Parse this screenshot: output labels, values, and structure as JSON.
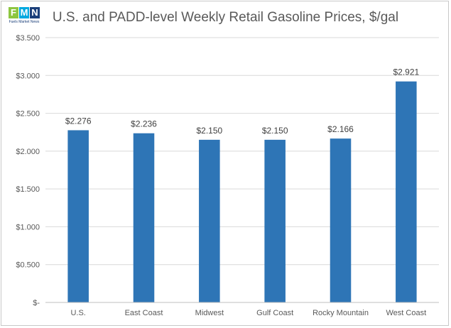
{
  "logo": {
    "letters": [
      "F",
      "M",
      "N"
    ],
    "letter_colors": [
      "#8dc63f",
      "#00a9e0",
      "#1b3f7a"
    ],
    "tagline": "Fuels Market News"
  },
  "chart_data": {
    "type": "bar",
    "title": "U.S. and PADD-level Weekly Retail Gasoline Prices, $/gal",
    "categories": [
      "U.S.",
      "East Coast",
      "Midwest",
      "Gulf Coast",
      "Rocky Mountain",
      "West Coast"
    ],
    "values": [
      2.276,
      2.236,
      2.15,
      2.15,
      2.166,
      2.921
    ],
    "data_labels": [
      "$2.276",
      "$2.236",
      "$2.150",
      "$2.150",
      "$2.166",
      "$2.921"
    ],
    "ylim": [
      0,
      3.5
    ],
    "y_ticks": [
      0,
      0.5,
      1.0,
      1.5,
      2.0,
      2.5,
      3.0,
      3.5
    ],
    "y_tick_labels": [
      "$-",
      "$0.500",
      "$1.000",
      "$1.500",
      "$2.000",
      "$2.500",
      "$3.000",
      "$3.500"
    ],
    "grid": true,
    "legend": "none",
    "colors": {
      "bar": "#2e75b6",
      "grid": "#d9d9d9",
      "axis": "#bfbfbf"
    }
  }
}
